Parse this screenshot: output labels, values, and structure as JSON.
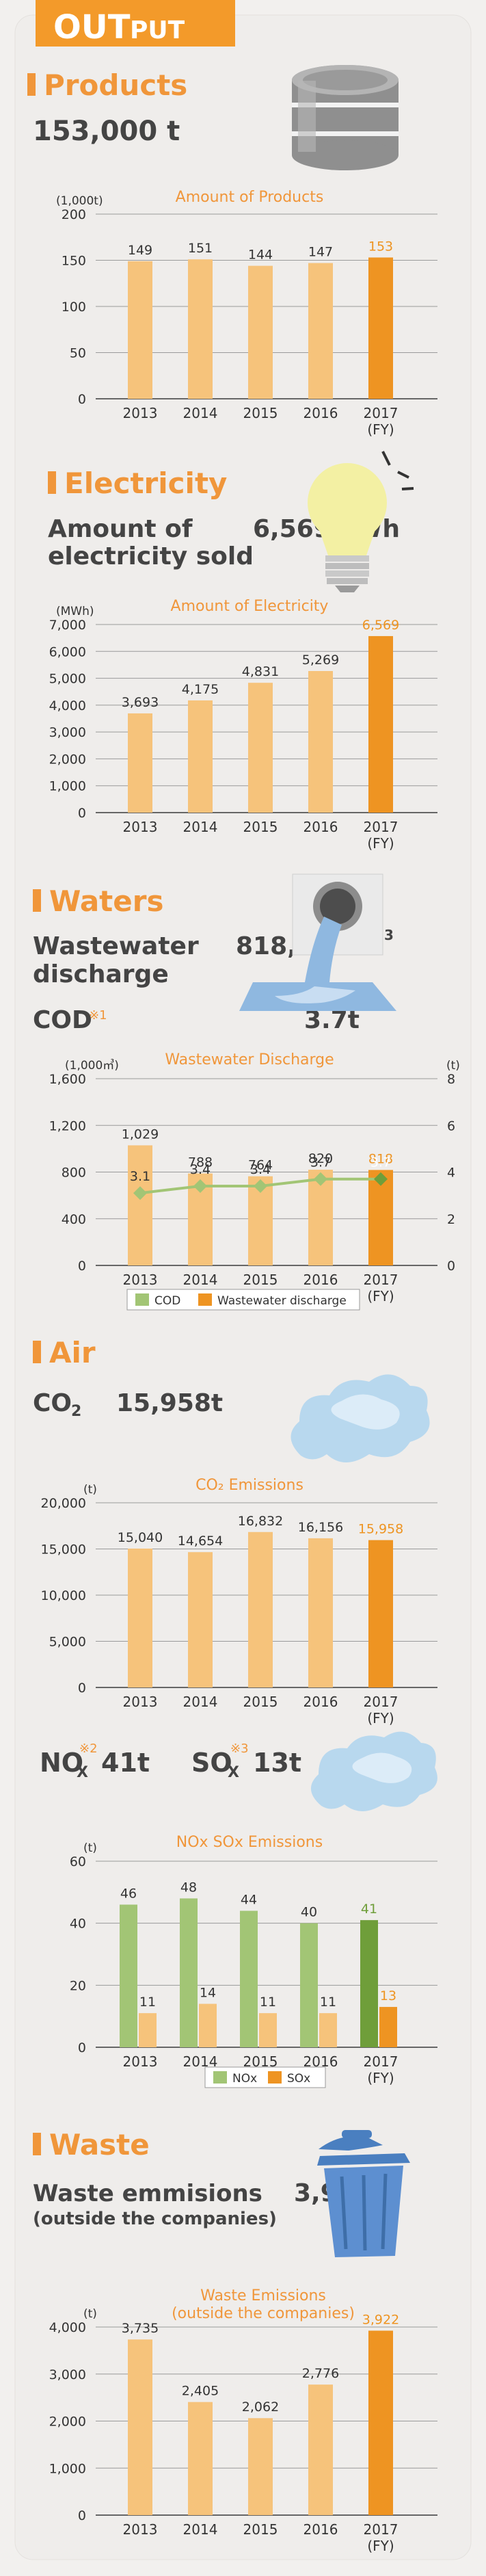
{
  "header": {
    "badge_text": "OUT",
    "badge_suffix": "PUT"
  },
  "colors": {
    "accent": "#f39a2a",
    "bar_light": "#f6c37b",
    "bar_dark": "#ee9422",
    "green_light": "#a2c575",
    "green_dark": "#6f9e3a",
    "heading": "#f0963a",
    "grid": "#9a9a9a"
  },
  "products": {
    "heading": "Products",
    "value": "153,000 t",
    "chart_data": {
      "type": "bar",
      "title": "Amount of Products",
      "unit": "(1,000t)",
      "categories": [
        "2013",
        "2014",
        "2015",
        "2016",
        "2017"
      ],
      "fy_label": "(FY)",
      "values": [
        149,
        151,
        144,
        147,
        153
      ],
      "value_labels": [
        "149",
        "151",
        "144",
        "147",
        "153"
      ],
      "yticks": [
        "0",
        "50",
        "100",
        "150",
        "200"
      ],
      "ylim": [
        0,
        200
      ]
    }
  },
  "electricity": {
    "heading": "Electricity",
    "label_line1": "Amount of",
    "label_line2": "electricity sold",
    "value": "6,569MWh",
    "chart_data": {
      "type": "bar",
      "title": "Amount of Electricity",
      "unit": "(MWh)",
      "categories": [
        "2013",
        "2014",
        "2015",
        "2016",
        "2017"
      ],
      "fy_label": "(FY)",
      "values": [
        3693,
        4175,
        4831,
        5269,
        6569
      ],
      "value_labels": [
        "3,693",
        "4,175",
        "4,831",
        "5,269",
        "6,569"
      ],
      "yticks": [
        "0",
        "1,000",
        "2,000",
        "3,000",
        "4,000",
        "5,000",
        "6,000",
        "7,000"
      ],
      "ylim": [
        0,
        7000
      ]
    }
  },
  "waters": {
    "heading": "Waters",
    "label_line1": "Wastewater",
    "label_line2": "discharge",
    "value": "818,000 m",
    "value_sup": "3",
    "cod_label": "COD",
    "cod_note": "※1",
    "cod_value": "3.7t",
    "chart_data": {
      "type": "bar",
      "title": "Wastewater Discharge",
      "unit_left": "(1,000㎥)",
      "unit_right": "(t)",
      "categories": [
        "2013",
        "2014",
        "2015",
        "2016",
        "2017"
      ],
      "fy_label": "(FY)",
      "yticks_left": [
        "0",
        "400",
        "800",
        "1,200",
        "1,600"
      ],
      "yticks_right": [
        "0",
        "2",
        "4",
        "6",
        "8"
      ],
      "ylim_left": [
        0,
        1600
      ],
      "ylim_right": [
        0,
        8
      ],
      "series": [
        {
          "name": "Wastewater discharge",
          "values": [
            1029,
            788,
            764,
            820,
            818
          ],
          "labels": [
            "1,029",
            "788",
            "764",
            "820",
            "818"
          ]
        },
        {
          "name": "COD",
          "values": [
            3.1,
            3.4,
            3.4,
            3.7,
            3.7
          ],
          "labels": [
            "3.1",
            "3.4",
            "3.4",
            "3.7",
            "3.7"
          ]
        }
      ]
    }
  },
  "air": {
    "heading": "Air",
    "co2_label": "CO",
    "co2_sub": "2",
    "co2_value": "15,958t",
    "co2_chart": {
      "type": "bar",
      "title": "CO₂ Emissions",
      "unit": "(t)",
      "categories": [
        "2013",
        "2014",
        "2015",
        "2016",
        "2017"
      ],
      "fy_label": "(FY)",
      "values": [
        15040,
        14654,
        16832,
        16156,
        15958
      ],
      "value_labels": [
        "15,040",
        "14,654",
        "16,832",
        "16,156",
        "15,958"
      ],
      "yticks": [
        "0",
        "5,000",
        "10,000",
        "15,000",
        "20,000"
      ],
      "ylim": [
        0,
        20000
      ]
    },
    "nox_label": "NO",
    "nox_sub": "X",
    "nox_note": "※2",
    "nox_value": "41t",
    "sox_label": "SO",
    "sox_sub": "X",
    "sox_note": "※3",
    "sox_value": "13t",
    "noxsox_chart": {
      "type": "bar",
      "title": "NOx SOx Emissions",
      "unit": "(t)",
      "categories": [
        "2013",
        "2014",
        "2015",
        "2016",
        "2017"
      ],
      "fy_label": "(FY)",
      "yticks": [
        "0",
        "20",
        "40",
        "60"
      ],
      "ylim": [
        0,
        60
      ],
      "series": [
        {
          "name": "NOx",
          "values": [
            46,
            48,
            44,
            40,
            41
          ],
          "labels": [
            "46",
            "48",
            "44",
            "40",
            "41"
          ]
        },
        {
          "name": "SOx",
          "values": [
            11,
            14,
            11,
            11,
            13
          ],
          "labels": [
            "11",
            "14",
            "11",
            "11",
            "13"
          ]
        }
      ]
    }
  },
  "waste": {
    "heading": "Waste",
    "label_line1": "Waste emmisions",
    "label_line2": "(outside the companies)",
    "value": "3,922t",
    "chart_data": {
      "type": "bar",
      "title_line1": "Waste Emissions",
      "title_line2": "(outside the companies)",
      "unit": "(t)",
      "categories": [
        "2013",
        "2014",
        "2015",
        "2016",
        "2017"
      ],
      "fy_label": "(FY)",
      "values": [
        3735,
        2405,
        2062,
        2776,
        3922
      ],
      "value_labels": [
        "3,735",
        "2,405",
        "2,062",
        "2,776",
        "3,922"
      ],
      "yticks": [
        "0",
        "1,000",
        "2,000",
        "3,000",
        "4,000"
      ],
      "ylim": [
        0,
        4000
      ]
    }
  }
}
